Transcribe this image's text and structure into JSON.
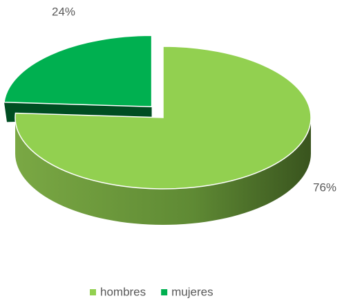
{
  "chart_data": {
    "type": "pie3d",
    "categories": [
      "hombres",
      "mujeres"
    ],
    "values": [
      76,
      24
    ],
    "value_labels": [
      "76%",
      "24%"
    ],
    "colors": [
      "#92d050",
      "#00b050"
    ],
    "legend": "bottom"
  }
}
